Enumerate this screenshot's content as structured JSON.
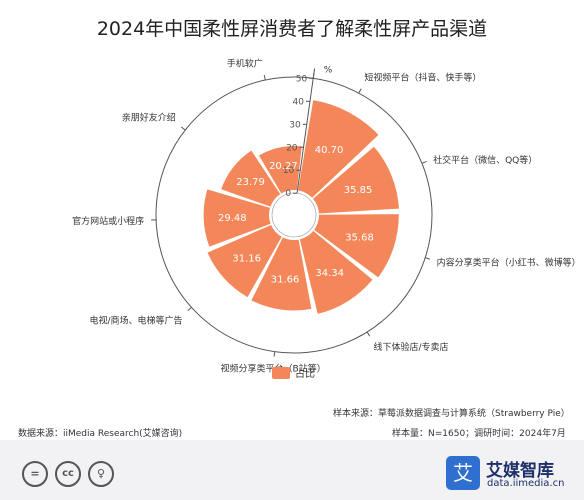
{
  "title": "2024年中国柔性屏消费者了解柔性屏产品渠道",
  "legend_label": "占比",
  "colors": {
    "bar": "#f4875a",
    "axis": "#555555",
    "legend": "#f4875a"
  },
  "chart_data": {
    "type": "bar",
    "subtype": "polar-bar",
    "unit": "%",
    "radial_range": [
      0,
      50
    ],
    "radial_ticks": [
      "0",
      "10",
      "20",
      "30",
      "40",
      "50"
    ],
    "categories": [
      "短视频平台（抖音、快手等）",
      "社交平台（微信、QQ等）",
      "内容分享类平台（小红书、微博等）",
      "线下体验店/专卖店",
      "视频分享类平台（B站等）",
      "电视/商场、电梯等广告",
      "官方网站或小程序",
      "亲朋好友介绍",
      "手机软广"
    ],
    "values": [
      40.7,
      35.85,
      35.68,
      34.34,
      31.66,
      31.16,
      29.48,
      23.79,
      20.27
    ],
    "value_labels": [
      "40.70",
      "35.85",
      "35.68",
      "34.34",
      "31.66",
      "31.16",
      "29.48",
      "23.79",
      "20.27"
    ],
    "series": [
      {
        "name": "占比",
        "values": [
          40.7,
          35.85,
          35.68,
          34.34,
          31.66,
          31.16,
          29.48,
          23.79,
          20.27
        ]
      }
    ],
    "legend_position": "bottom"
  },
  "footer": {
    "sample_source": "样本来源：草莓派数据调查与计算系统（Strawberry Pie）",
    "data_source": "数据来源：iiMedia Research(艾媒咨询)",
    "sample_size": "样本量：N=1650；调研时间：2024年7月"
  },
  "brand": {
    "logo_char": "艾",
    "name": "艾媒智库",
    "url": "data.iimedia.cn"
  },
  "license_icons": [
    {
      "icon": "equals-icon",
      "glyph": "="
    },
    {
      "icon": "cc-icon",
      "glyph": "cc"
    },
    {
      "icon": "person-icon",
      "glyph": "♀"
    }
  ]
}
